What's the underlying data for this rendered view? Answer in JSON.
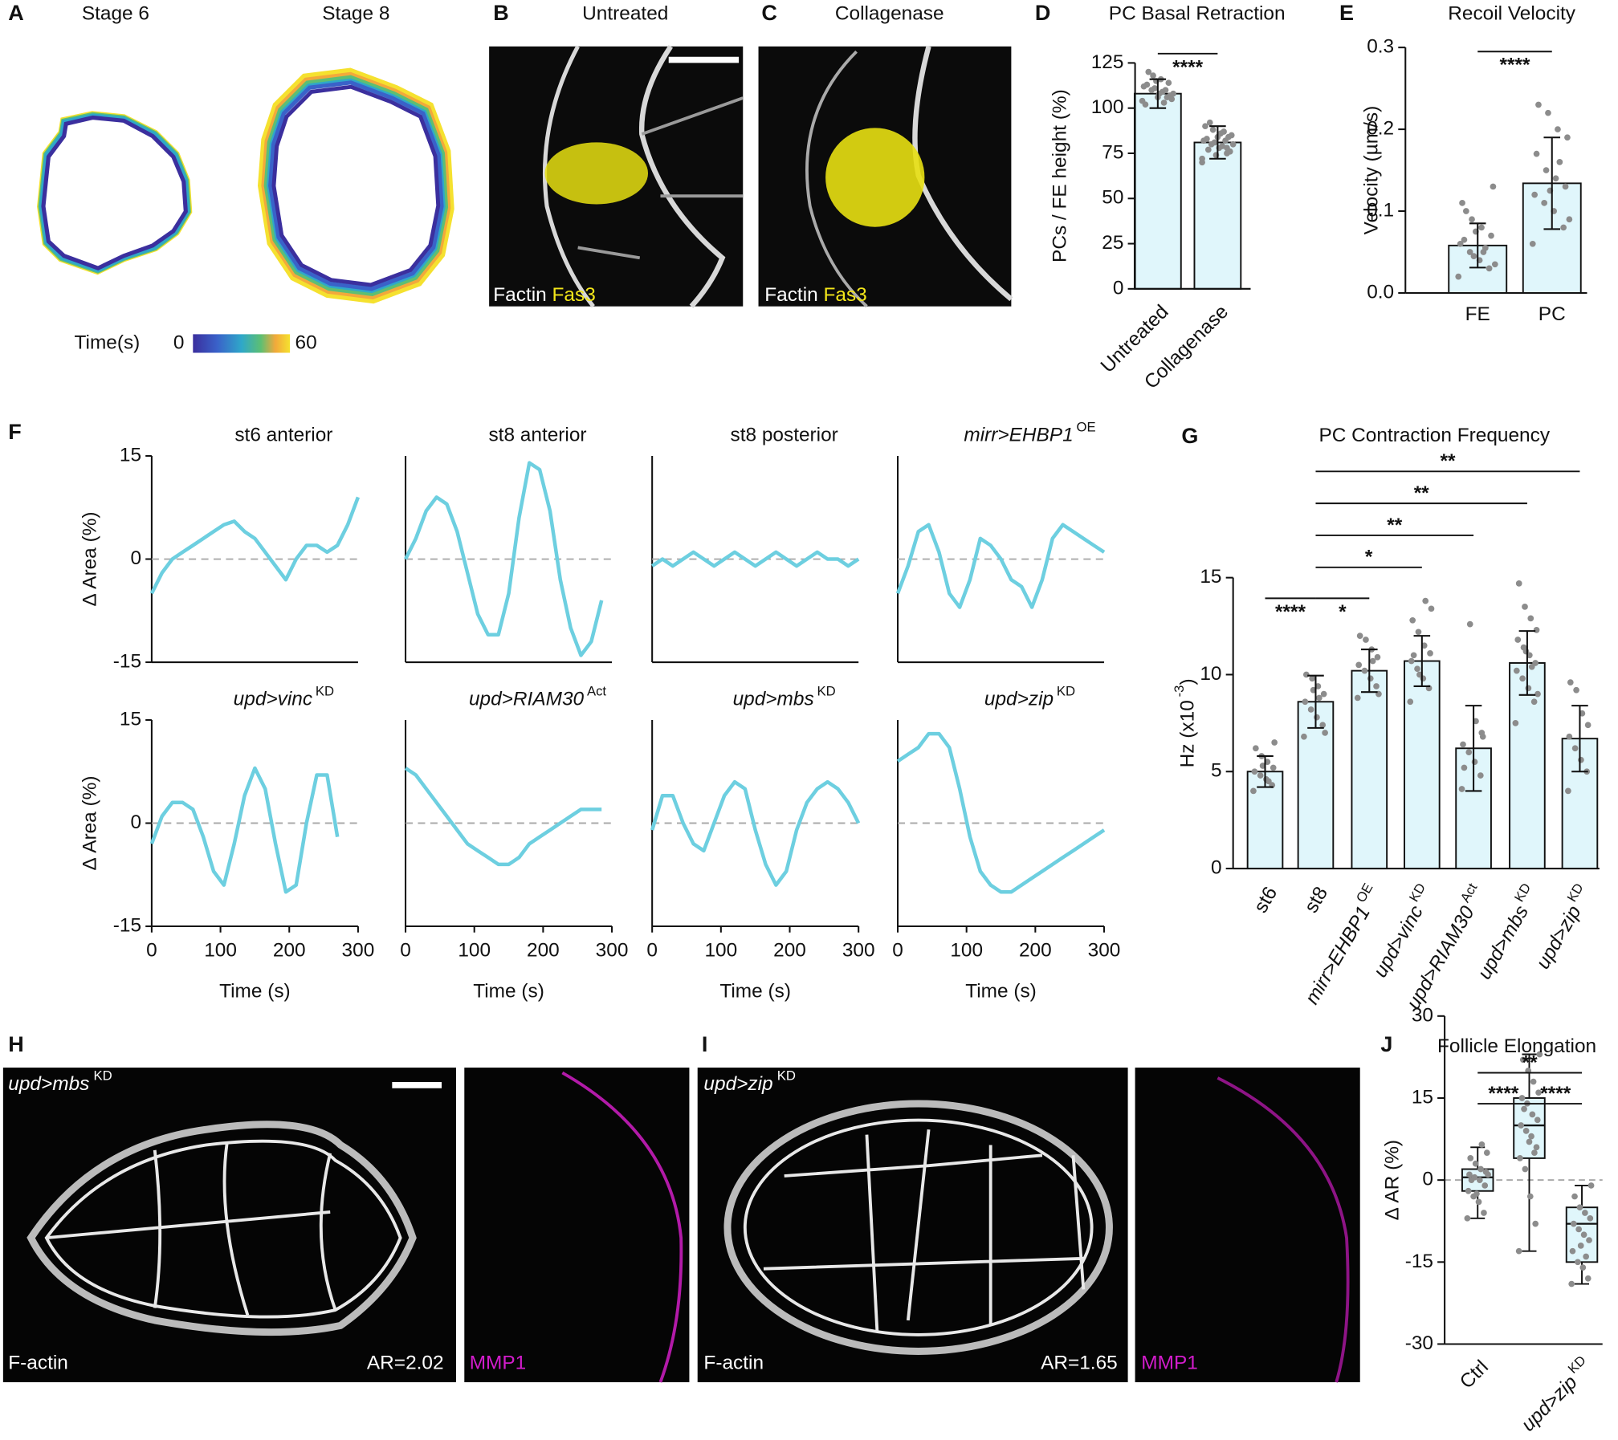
{
  "panel_letters": [
    "A",
    "B",
    "C",
    "D",
    "E",
    "F",
    "G",
    "H",
    "I",
    "J"
  ],
  "panel_a": {
    "titles": [
      "Stage 6",
      "Stage 8"
    ],
    "colorbar": {
      "label": "Time(s)",
      "min": 0,
      "max": 60
    }
  },
  "panel_b": {
    "title": "Untreated",
    "stain1": "Factin",
    "stain2": "Fas3"
  },
  "panel_c": {
    "title": "Collagenase",
    "stain1": "Factin",
    "stain2": "Fas3"
  },
  "panel_h": {
    "genotype": "upd>mbs",
    "genotype_sup": "KD",
    "stain1": "F-actin",
    "ratio": "AR=2.02",
    "stain2": "MMP1"
  },
  "panel_i": {
    "genotype": "upd>zip",
    "genotype_sup": "KD",
    "stain1": "F-actin",
    "ratio": "AR=1.65",
    "stain2": "MMP1"
  },
  "chart_data": [
    {
      "type": "bar",
      "title": "PC Basal Retraction",
      "ylabel": "PCs / FE height (%)",
      "categories": [
        "Untreated",
        "Collagenase"
      ],
      "values": [
        108,
        81
      ],
      "errors": [
        8,
        9
      ],
      "points": [
        [
          104,
          106,
          108,
          110,
          112,
          114,
          116,
          118,
          102,
          107,
          109,
          111,
          113,
          105,
          103,
          115,
          120,
          108,
          110,
          106
        ],
        [
          72,
          75,
          78,
          80,
          82,
          84,
          86,
          88,
          90,
          76,
          79,
          81,
          83,
          85,
          87,
          74,
          77,
          80,
          82,
          84,
          92,
          70,
          78
        ]
      ],
      "color": "#e0f6fb",
      "ylim": [
        0,
        125
      ],
      "yticks": [
        0,
        25,
        50,
        75,
        100,
        125
      ],
      "significance": [
        {
          "between": [
            "Untreated",
            "Collagenase"
          ],
          "label": "****"
        }
      ]
    },
    {
      "type": "bar",
      "title": "Recoil Velocity",
      "ylabel": "Velocity (µm/s)",
      "categories": [
        "FE",
        "PC"
      ],
      "values": [
        0.058,
        0.134
      ],
      "errors": [
        0.027,
        0.056
      ],
      "points": [
        [
          0.02,
          0.03,
          0.04,
          0.05,
          0.06,
          0.07,
          0.08,
          0.09,
          0.11,
          0.13,
          0.05,
          0.045,
          0.065,
          0.035,
          0.055,
          0.075,
          0.1
        ],
        [
          0.06,
          0.08,
          0.1,
          0.11,
          0.12,
          0.13,
          0.14,
          0.15,
          0.17,
          0.19,
          0.2,
          0.22,
          0.23,
          0.09,
          0.16,
          0.125
        ]
      ],
      "color": "#e0f6fb",
      "ylim": [
        0,
        0.3
      ],
      "yticks": [
        {
          "value": 0,
          "label": "0.0"
        },
        0.1,
        0.2,
        0.3
      ],
      "significance": [
        {
          "between": [
            "FE",
            "PC"
          ],
          "label": "****"
        }
      ]
    },
    {
      "type": "line",
      "title": "st6 anterior",
      "ylabel": "Δ Area (%)",
      "x": [
        0,
        15,
        30,
        45,
        60,
        75,
        90,
        105,
        120,
        135,
        150,
        165,
        180,
        195,
        210,
        225,
        240,
        255,
        270,
        285,
        300
      ],
      "values": [
        -5,
        -2,
        0,
        1,
        2,
        3,
        4,
        5,
        5.5,
        4,
        3,
        1,
        -1,
        -3,
        0,
        2,
        2,
        1,
        2,
        5,
        9
      ],
      "color": "#6dcfe0",
      "ylim": [
        -15,
        15
      ],
      "yticks": [
        -15,
        0,
        15
      ],
      "xlim": [
        0,
        300
      ]
    },
    {
      "type": "line",
      "title": "st8 anterior",
      "x": [
        0,
        15,
        30,
        45,
        60,
        75,
        90,
        105,
        120,
        135,
        150,
        165,
        180,
        195,
        210,
        225,
        240,
        255,
        270,
        285,
        300
      ],
      "values": [
        0,
        3,
        7,
        9,
        8,
        4,
        -2,
        -8,
        -11,
        -11,
        -5,
        6,
        14,
        13,
        7,
        -3,
        -10,
        -14,
        -12,
        -6,
        null
      ],
      "color": "#6dcfe0",
      "ylim": [
        -15,
        15
      ],
      "xlim": [
        0,
        300
      ]
    },
    {
      "type": "line",
      "title": "st8 posterior",
      "x": [
        0,
        15,
        30,
        45,
        60,
        75,
        90,
        105,
        120,
        135,
        150,
        165,
        180,
        195,
        210,
        225,
        240,
        255,
        270,
        285,
        300
      ],
      "values": [
        -1,
        0,
        -1,
        0,
        1,
        0,
        -1,
        0,
        1,
        0,
        -1,
        0,
        1,
        0,
        -1,
        0,
        1,
        0,
        0,
        -1,
        0
      ],
      "color": "#6dcfe0",
      "ylim": [
        -15,
        15
      ],
      "xlim": [
        0,
        300
      ]
    },
    {
      "type": "line",
      "title": "mirr>EHBP1",
      "title_sup": "OE",
      "x": [
        0,
        15,
        30,
        45,
        60,
        75,
        90,
        105,
        120,
        135,
        150,
        165,
        180,
        195,
        210,
        225,
        240,
        255,
        270,
        285,
        300
      ],
      "values": [
        -5,
        -1,
        4,
        5,
        1,
        -5,
        -7,
        -3,
        3,
        2,
        0,
        -3,
        -4,
        -7,
        -3,
        3,
        5,
        4,
        3,
        2,
        1
      ],
      "color": "#6dcfe0",
      "ylim": [
        -15,
        15
      ],
      "xlim": [
        0,
        300
      ]
    },
    {
      "type": "line",
      "title": "upd>vinc",
      "title_sup": "KD",
      "ylabel": "Δ Area (%)",
      "xlabel": "Time (s)",
      "x": [
        0,
        15,
        30,
        45,
        60,
        75,
        90,
        105,
        120,
        135,
        150,
        165,
        180,
        195,
        210,
        225,
        240,
        255,
        270,
        285,
        300
      ],
      "values": [
        -3,
        1,
        3,
        3,
        2,
        -2,
        -7,
        -9,
        -3,
        4,
        8,
        5,
        -3,
        -10,
        -9,
        0,
        7,
        7,
        -2,
        null,
        null
      ],
      "color": "#6dcfe0",
      "ylim": [
        -15,
        15
      ],
      "yticks": [
        -15,
        0,
        15
      ],
      "xlim": [
        0,
        300
      ],
      "xticks": [
        0,
        100,
        200,
        300
      ]
    },
    {
      "type": "line",
      "title": "upd>RIAM30",
      "title_sup": "Act",
      "xlabel": "Time (s)",
      "x": [
        0,
        15,
        30,
        45,
        60,
        75,
        90,
        105,
        120,
        135,
        150,
        165,
        180,
        195,
        210,
        225,
        240,
        255,
        270,
        285,
        300
      ],
      "values": [
        8,
        7,
        5,
        3,
        1,
        -1,
        -3,
        -4,
        -5,
        -6,
        -6,
        -5,
        -3,
        -2,
        -1,
        0,
        1,
        2,
        2,
        2,
        null
      ],
      "color": "#6dcfe0",
      "ylim": [
        -15,
        15
      ],
      "xlim": [
        0,
        300
      ],
      "xticks": [
        0,
        100,
        200,
        300
      ]
    },
    {
      "type": "line",
      "title": "upd>mbs",
      "title_sup": "KD",
      "xlabel": "Time (s)",
      "x": [
        0,
        15,
        30,
        45,
        60,
        75,
        90,
        105,
        120,
        135,
        150,
        165,
        180,
        195,
        210,
        225,
        240,
        255,
        270,
        285,
        300
      ],
      "values": [
        -1,
        4,
        4,
        0,
        -3,
        -4,
        0,
        4,
        6,
        5,
        -1,
        -6,
        -9,
        -7,
        -1,
        3,
        5,
        6,
        5,
        3,
        0
      ],
      "color": "#6dcfe0",
      "ylim": [
        -15,
        15
      ],
      "xlim": [
        0,
        300
      ],
      "xticks": [
        0,
        100,
        200,
        300
      ]
    },
    {
      "type": "line",
      "title": "upd>zip",
      "title_sup": "KD",
      "xlabel": "Time (s)",
      "x": [
        0,
        15,
        30,
        45,
        60,
        75,
        90,
        105,
        120,
        135,
        150,
        165,
        180,
        195,
        210,
        225,
        240,
        255,
        270,
        285,
        300
      ],
      "values": [
        9,
        10,
        11,
        13,
        13,
        11,
        5,
        -2,
        -7,
        -9,
        -10,
        -10,
        -9,
        -8,
        -7,
        -6,
        -5,
        -4,
        -3,
        -2,
        -1
      ],
      "color": "#6dcfe0",
      "ylim": [
        -15,
        15
      ],
      "xlim": [
        0,
        300
      ],
      "xticks": [
        0,
        100,
        200,
        300
      ]
    },
    {
      "type": "bar",
      "title": "PC Contraction Frequency",
      "ylabel": [
        {
          "text": "Hz (x10"
        },
        {
          "text": "-3",
          "sup": true
        },
        {
          "text": ")"
        }
      ],
      "categories": [
        "st6",
        "st8",
        "mirr>EHBP1",
        "upd>vinc",
        "upd>RIAM30",
        "upd>mbs",
        "upd>zip"
      ],
      "category_sups": [
        null,
        null,
        "OE",
        "KD",
        "Act",
        "KD",
        "KD"
      ],
      "values": [
        5.0,
        8.6,
        10.2,
        10.7,
        6.2,
        10.6,
        6.7
      ],
      "errors": [
        0.8,
        1.35,
        1.1,
        1.3,
        2.2,
        1.65,
        1.7
      ],
      "points": [
        [
          4.0,
          4.3,
          4.6,
          4.8,
          5.0,
          5.2,
          5.5,
          5.8,
          6.2,
          6.5,
          4.5,
          5.3
        ],
        [
          6.8,
          7.4,
          7.8,
          8.2,
          8.6,
          9.0,
          9.4,
          9.8,
          10.0,
          7.0,
          8.8,
          9.2
        ],
        [
          8.8,
          9.4,
          9.8,
          10.2,
          10.5,
          10.9,
          11.3,
          11.8,
          12.0,
          9.0,
          10.7
        ],
        [
          8.6,
          9.3,
          9.8,
          10.3,
          10.7,
          11.1,
          11.5,
          12.2,
          12.8,
          13.4,
          13.8,
          10.0,
          11.0
        ],
        [
          4.1,
          4.8,
          5.5,
          6.0,
          6.4,
          7.0,
          7.6,
          12.6,
          5.2,
          6.8
        ],
        [
          7.5,
          8.6,
          9.3,
          9.8,
          10.2,
          10.6,
          11.0,
          11.4,
          11.8,
          12.3,
          12.9,
          13.5,
          14.7,
          9.0,
          10.4,
          11.2
        ],
        [
          4.0,
          5.0,
          5.6,
          6.2,
          6.8,
          7.4,
          8.0,
          9.2,
          9.6
        ]
      ],
      "color": "#e0f6fb",
      "ylim": [
        0,
        15
      ],
      "yticks": [
        0,
        5,
        10,
        15
      ],
      "significance": [
        {
          "between": [
            "st6",
            "st8"
          ],
          "label": "****"
        },
        {
          "between": [
            "st8",
            "mirr>EHBP1"
          ],
          "label": "*"
        },
        {
          "between": [
            "st8",
            "upd>vinc"
          ],
          "label": "*"
        },
        {
          "between": [
            "st8",
            "upd>RIAM30"
          ],
          "label": "**"
        },
        {
          "between": [
            "st8",
            "upd>mbs"
          ],
          "label": "**"
        },
        {
          "between": [
            "st8",
            "upd>zip"
          ],
          "label": "**"
        }
      ]
    },
    {
      "type": "box",
      "title": "Follicle Elongation",
      "ylabel": "Δ AR (%)",
      "categories": [
        "Ctrl",
        null,
        "upd>zip"
      ],
      "category_sups": [
        null,
        null,
        "KD"
      ],
      "median": [
        0.5,
        10,
        -8
      ],
      "q1": [
        -2,
        4,
        -15
      ],
      "q3": [
        2,
        15,
        -5
      ],
      "whisker_low": [
        -7,
        -13,
        -19
      ],
      "whisker_high": [
        6,
        23,
        -1
      ],
      "points": [
        [
          -7,
          -6,
          -4,
          -3,
          -2,
          -1,
          0,
          0.5,
          1,
          1.5,
          2,
          3,
          4,
          5,
          6.5,
          -2.5,
          0,
          1
        ],
        [
          -13,
          -8,
          -3,
          2,
          4,
          6,
          8,
          9,
          10,
          11,
          12,
          14,
          15,
          16,
          18,
          20,
          22,
          23,
          5,
          7,
          13
        ],
        [
          -19,
          -18,
          -16,
          -15,
          -13,
          -11,
          -10,
          -9,
          -8,
          -7,
          -6,
          -5,
          -3,
          -1,
          -14,
          -12
        ]
      ],
      "color": "#e0f6fb",
      "ylim": [
        -30,
        30
      ],
      "yticks": [
        -30,
        -15,
        0,
        15,
        30
      ],
      "significance": [
        {
          "between": [
            "Ctrl",
            "upd>zip"
          ],
          "label": "**"
        },
        {
          "between": [
            "Ctrl",
            null
          ],
          "label": "****"
        },
        {
          "between": [
            null,
            "upd>zip"
          ],
          "label": "****"
        }
      ]
    }
  ]
}
